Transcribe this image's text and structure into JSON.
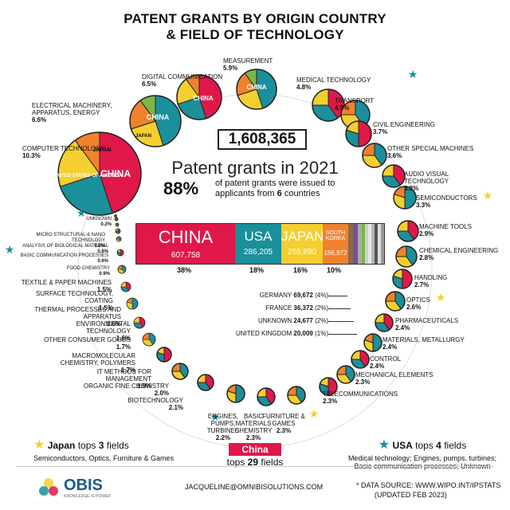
{
  "title_line1": "PATENT GRANTS BY ORIGIN COUNTRY",
  "title_line2": "& FIELD OF TECHNOLOGY",
  "total": "1,608,365",
  "grants_text": "Patent grants in 2021",
  "pct": "88%",
  "pct_note_a": "of patent grants were issued to",
  "pct_note_b": "applicants from",
  "pct_note_n": "6",
  "pct_note_c": "countries",
  "chart_data": {
    "type": "bar",
    "title": "Patent grants in 2021",
    "categories": [
      "CHINA",
      "USA",
      "JAPAN",
      "SOUTH KOREA",
      "GERMANY",
      "FRANCE",
      "UNKNOWN",
      "UNITED KINGDOM"
    ],
    "values": [
      607758,
      286205,
      256890,
      156972,
      69672,
      36372,
      24677,
      20009
    ],
    "value_labels": [
      "607,758",
      "286,205",
      "256,890",
      "156,972",
      "69,672",
      "36,372",
      "24,677",
      "20,009"
    ],
    "shares": [
      "38%",
      "18%",
      "16%",
      "10%",
      "(4%)",
      "(2%)",
      "(2%)",
      "(1%)"
    ],
    "colors": [
      "#e0184a",
      "#1b8f9a",
      "#f4cf2f",
      "#f0822e",
      "#8a6a44",
      "#7a4f9a",
      "#aaaaaa",
      "#7ab648"
    ],
    "fields": [
      {
        "name": "COMPUTER TECHNOLOGY",
        "share": "10.3%"
      },
      {
        "name": "ELECTRICAL MACHINERY, APPARATUS, ENERGY",
        "share": "6.6%"
      },
      {
        "name": "DIGITAL COMMUNICATION",
        "share": "6.5%"
      },
      {
        "name": "MEASUREMENT",
        "share": "5.9%"
      },
      {
        "name": "MEDICAL TECHNOLOGY",
        "share": "4.8%"
      },
      {
        "name": "TRANSPORT",
        "share": "4.5%"
      },
      {
        "name": "CIVIL ENGINEERING",
        "share": "3.7%"
      },
      {
        "name": "OTHER SPECIAL MACHINES",
        "share": "3.6%"
      },
      {
        "name": "AUDIO VISUAL TECHNOLOGY",
        "share": "3.3%"
      },
      {
        "name": "SEMICONDUCTORS",
        "share": "3.3%"
      },
      {
        "name": "MACHINE TOOLS",
        "share": "2.9%"
      },
      {
        "name": "CHEMICAL ENGINEERING",
        "share": "2.8%"
      },
      {
        "name": "HANDLING",
        "share": "2.7%"
      },
      {
        "name": "OPTICS",
        "share": "2.6%"
      },
      {
        "name": "PHARMACEUTICALS",
        "share": "2.4%"
      },
      {
        "name": "MATERIALS, METALLURGY",
        "share": "2.4%"
      },
      {
        "name": "CONTROL",
        "share": "2.4%"
      },
      {
        "name": "MECHANICAL ELEMENTS",
        "share": "2.3%"
      },
      {
        "name": "TELECOMMUNICATIONS",
        "share": "2.3%"
      },
      {
        "name": "FURNITURE & GAMES",
        "share": "2.3%"
      },
      {
        "name": "BASIC MATERIALS CHEMISTRY",
        "share": "2.3%"
      },
      {
        "name": "ENGINES, PUMPS, TURBINES",
        "share": "2.2%"
      },
      {
        "name": "BIOTECHNOLOGY",
        "share": "2.1%"
      },
      {
        "name": "ORGANIC FINE CHEMISTRY",
        "share": "2.0%"
      },
      {
        "name": "IT METHODS FOR MANAGEMENT",
        "share": "1.9%"
      },
      {
        "name": "MACROMOLECULAR CHEMISTRY, POLYMERS",
        "share": "1.7%"
      },
      {
        "name": "OTHER CONSUMER GOODS",
        "share": "1.7%"
      },
      {
        "name": "ENVIRONMENTAL TECHNOLOGY",
        "share": "1.6%"
      },
      {
        "name": "THERMAL PROCESSES AND APPARATUS",
        "share": "1.6%"
      },
      {
        "name": "SURFACE TECHNOLOGY, COATING",
        "share": "1.5%"
      },
      {
        "name": "TEXTILE & PAPER MACHINES",
        "share": "1.5%"
      },
      {
        "name": "FOOD CHEMISTRY",
        "share": "0.9%"
      },
      {
        "name": "BASIC COMMUNICATION PROCESSES",
        "share": "0.6%"
      },
      {
        "name": "ANALYSIS OF BIOLOGICAL MATERIAL",
        "share": "0.6%"
      },
      {
        "name": "MICRO STRUCTURAL & NANO TECHNOLOGY",
        "share": "0.2%"
      },
      {
        "name": "UNKNOWN",
        "share": "0.2%"
      }
    ],
    "pie_labels": {
      "computer": [
        "CHINA",
        "UNITED STATES OF AMERICA",
        "JAPAN"
      ],
      "electrical": [
        "CHINA",
        "JAPAN"
      ],
      "digital": [
        "CHINA"
      ],
      "measurement": [
        "CHINA"
      ]
    }
  },
  "bottom": {
    "japan_title": "Japan",
    "japan_mid": "tops",
    "japan_n": "3",
    "japan_fields": "fields",
    "japan_note": "Semiconductors, Optics, Furniture & Games",
    "china_title": "China",
    "china_tops": "tops",
    "china_n": "29",
    "china_fields": "fields",
    "usa_title": "USA",
    "usa_mid": "tops",
    "usa_n": "4",
    "usa_fields": "fields",
    "usa_note1": "Medical technology; Engines, pumps, turbines;",
    "usa_note2": "Basic communication processes; Unknown"
  },
  "footer": {
    "logo_text": "OBIS",
    "logo_tag": "KNOWLEDGE IS POWER",
    "email": "JACQUELINE@OMNIBISOLUTIONS.COM",
    "source": "* DATA SOURCE:  WWW.WIPO.INT/IPSTATS",
    "updated": "(UPDATED FEB 2023)"
  }
}
